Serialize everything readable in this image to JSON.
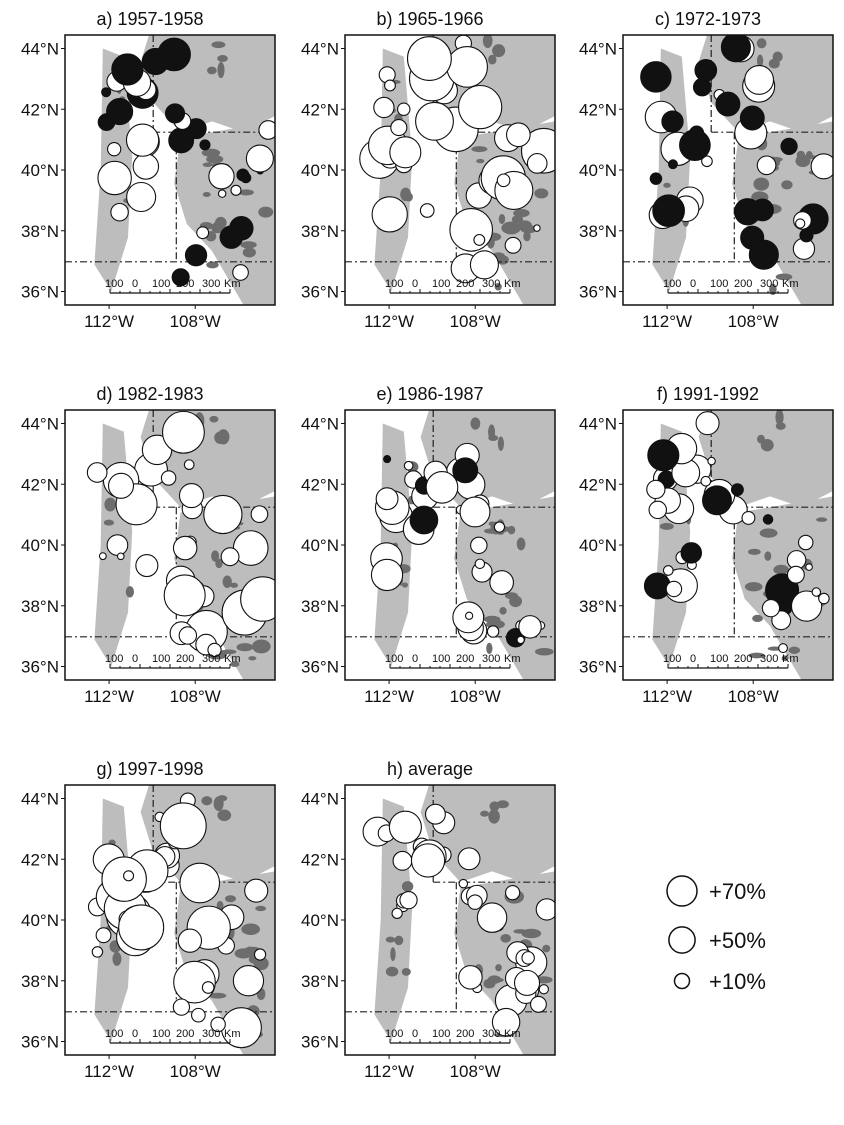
{
  "figure": {
    "lat_labels": [
      "44°N",
      "42°N",
      "40°N",
      "38°N",
      "36°N"
    ],
    "lon_labels": [
      "112°W",
      "108°W"
    ],
    "scale_bar": {
      "labels": [
        "100",
        "0",
        "100",
        "200",
        "300",
        "Km"
      ]
    },
    "legend": [
      {
        "label": "+70%",
        "value": 70
      },
      {
        "label": "+50%",
        "value": 50
      },
      {
        "label": "+10%",
        "value": 10
      }
    ],
    "colors": {
      "positive": "#ffffff",
      "negative": "#111111",
      "elevation_light": "#bdbdbd",
      "elevation_dark": "#6d6d6d",
      "outline": "#111111"
    },
    "panels": [
      {
        "id": "a",
        "title": "a) 1957-1958"
      },
      {
        "id": "b",
        "title": "b) 1965-1966"
      },
      {
        "id": "c",
        "title": "c) 1972-1973"
      },
      {
        "id": "d",
        "title": "d) 1982-1983"
      },
      {
        "id": "e",
        "title": "e) 1986-1987"
      },
      {
        "id": "f",
        "title": "f) 1991-1992"
      },
      {
        "id": "g",
        "title": "g) 1997-1998"
      },
      {
        "id": "h",
        "title": "h) average"
      }
    ]
  }
}
